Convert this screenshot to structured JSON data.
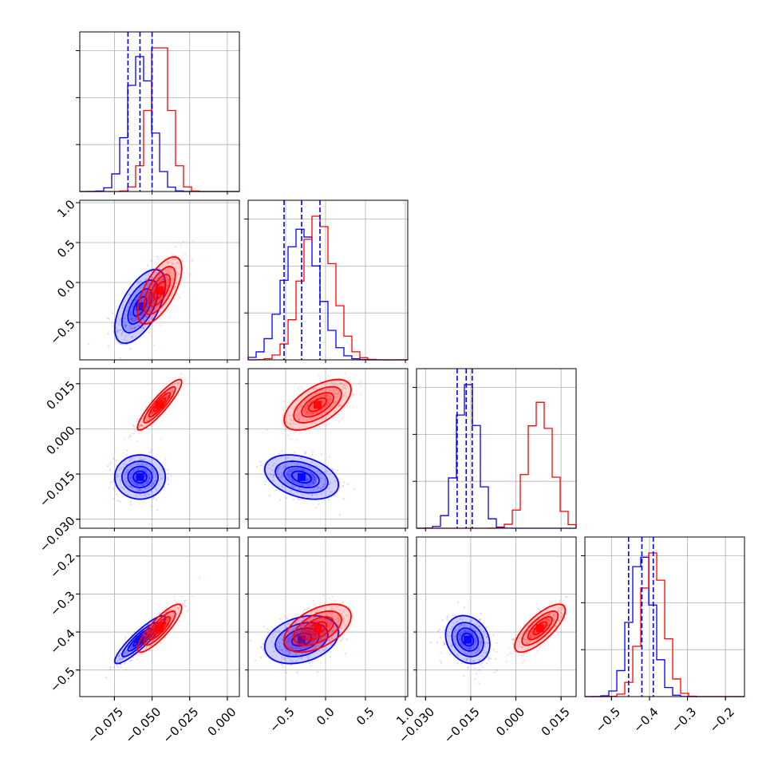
{
  "chart_data": {
    "type": "corner",
    "grid": true,
    "params": [
      {
        "ticks": [
          -0.075,
          -0.05,
          -0.025,
          0.0
        ],
        "tick_labels": [
          "−0.075",
          "−0.050",
          "−0.025",
          "0.000"
        ],
        "range": [
          -0.098,
          0.008
        ]
      },
      {
        "ticks": [
          -0.5,
          0.0,
          0.5,
          1.0
        ],
        "tick_labels": [
          "−0.5",
          "0.0",
          "0.5",
          "1.0"
        ],
        "range": [
          -0.97,
          1.03
        ]
      },
      {
        "ticks": [
          -0.03,
          -0.015,
          0.0,
          0.015
        ],
        "tick_labels": [
          "−0.030",
          "−0.015",
          "0.000",
          "0.015"
        ],
        "range": [
          -0.033,
          0.02
        ]
      },
      {
        "ticks": [
          -0.5,
          -0.4,
          -0.3,
          -0.2
        ],
        "tick_labels": [
          "−0.5",
          "−0.4",
          "−0.3",
          "−0.2"
        ],
        "range": [
          -0.57,
          -0.15
        ]
      }
    ],
    "series": [
      {
        "color": "#0000ff",
        "means": [
          -0.058,
          -0.3,
          -0.016,
          -0.42
        ],
        "sds": [
          0.008,
          0.22,
          0.0035,
          0.03
        ],
        "quantiles": [
          [
            -0.066,
            -0.058,
            -0.05
          ],
          [
            -0.52,
            -0.3,
            -0.07
          ],
          [
            -0.0195,
            -0.0165,
            -0.0145
          ],
          [
            -0.455,
            -0.42,
            -0.39
          ]
        ],
        "corr": [
          [
            1,
            0.6,
            0.0,
            0.9
          ],
          [
            0.6,
            1,
            -0.35,
            0.3
          ],
          [
            0.0,
            -0.35,
            1,
            -0.2
          ],
          [
            0.9,
            0.3,
            -0.2,
            1
          ]
        ]
      },
      {
        "color": "#ff0000",
        "means": [
          -0.045,
          -0.1,
          0.008,
          -0.39
        ],
        "sds": [
          0.007,
          0.2,
          0.004,
          0.03
        ],
        "quantiles": [
          [
            -0.052,
            -0.045,
            -0.038
          ],
          [
            -0.3,
            -0.1,
            0.1
          ],
          [
            0.003,
            0.008,
            0.012
          ],
          [
            -0.42,
            -0.39,
            -0.36
          ]
        ],
        "corr": [
          [
            1,
            0.65,
            0.9,
            0.85
          ],
          [
            0.65,
            1,
            0.6,
            0.5
          ],
          [
            0.9,
            0.6,
            1,
            0.75
          ],
          [
            0.85,
            0.5,
            0.75,
            1
          ]
        ]
      }
    ],
    "quantile_series": 0
  }
}
